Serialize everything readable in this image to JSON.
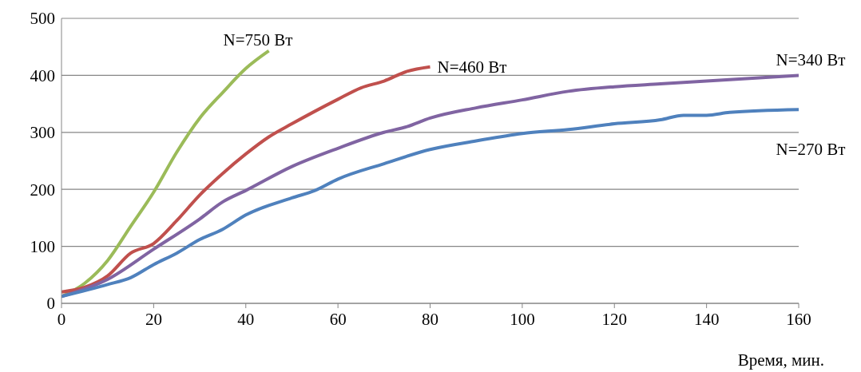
{
  "chart_data": {
    "type": "line",
    "xlabel": "Время, мин.",
    "xlim": [
      0,
      160
    ],
    "xticks": [
      0,
      20,
      40,
      60,
      80,
      100,
      120,
      140,
      160
    ],
    "ylim": [
      0,
      500
    ],
    "yticks": [
      0,
      100,
      200,
      300,
      400,
      500
    ],
    "grid": "y",
    "legend": false,
    "marker": "none",
    "line_style": "solid",
    "series": [
      {
        "name": "N=750 Вт",
        "color": "#9bbb59",
        "x": [
          0,
          5,
          10,
          15,
          20,
          25,
          30,
          35,
          40,
          45
        ],
        "values": [
          12,
          35,
          75,
          135,
          195,
          265,
          325,
          370,
          412,
          443
        ]
      },
      {
        "name": "N=460 Вт",
        "color": "#c0504d",
        "x": [
          0,
          5,
          10,
          15,
          20,
          25,
          30,
          35,
          40,
          45,
          50,
          55,
          60,
          65,
          70,
          75,
          80
        ],
        "values": [
          20,
          28,
          48,
          88,
          105,
          145,
          190,
          228,
          262,
          292,
          315,
          337,
          358,
          378,
          390,
          407,
          415
        ]
      },
      {
        "name": "N=340 Вт",
        "color": "#8064a2",
        "x": [
          0,
          10,
          20,
          30,
          35,
          40,
          50,
          60,
          70,
          75,
          80,
          90,
          100,
          110,
          120,
          130,
          140,
          150,
          160
        ],
        "values": [
          12,
          42,
          95,
          148,
          178,
          198,
          240,
          272,
          300,
          310,
          325,
          343,
          357,
          372,
          380,
          385,
          390,
          395,
          400
        ]
      },
      {
        "name": "N=270 Вт",
        "color": "#4f81bd",
        "x": [
          0,
          10,
          15,
          20,
          25,
          30,
          35,
          40,
          50,
          55,
          60,
          70,
          80,
          90,
          100,
          110,
          120,
          130,
          135,
          140,
          145,
          160
        ],
        "values": [
          12,
          33,
          45,
          68,
          88,
          112,
          130,
          155,
          185,
          198,
          218,
          245,
          270,
          285,
          298,
          305,
          315,
          322,
          330,
          330,
          335,
          340
        ]
      }
    ]
  }
}
